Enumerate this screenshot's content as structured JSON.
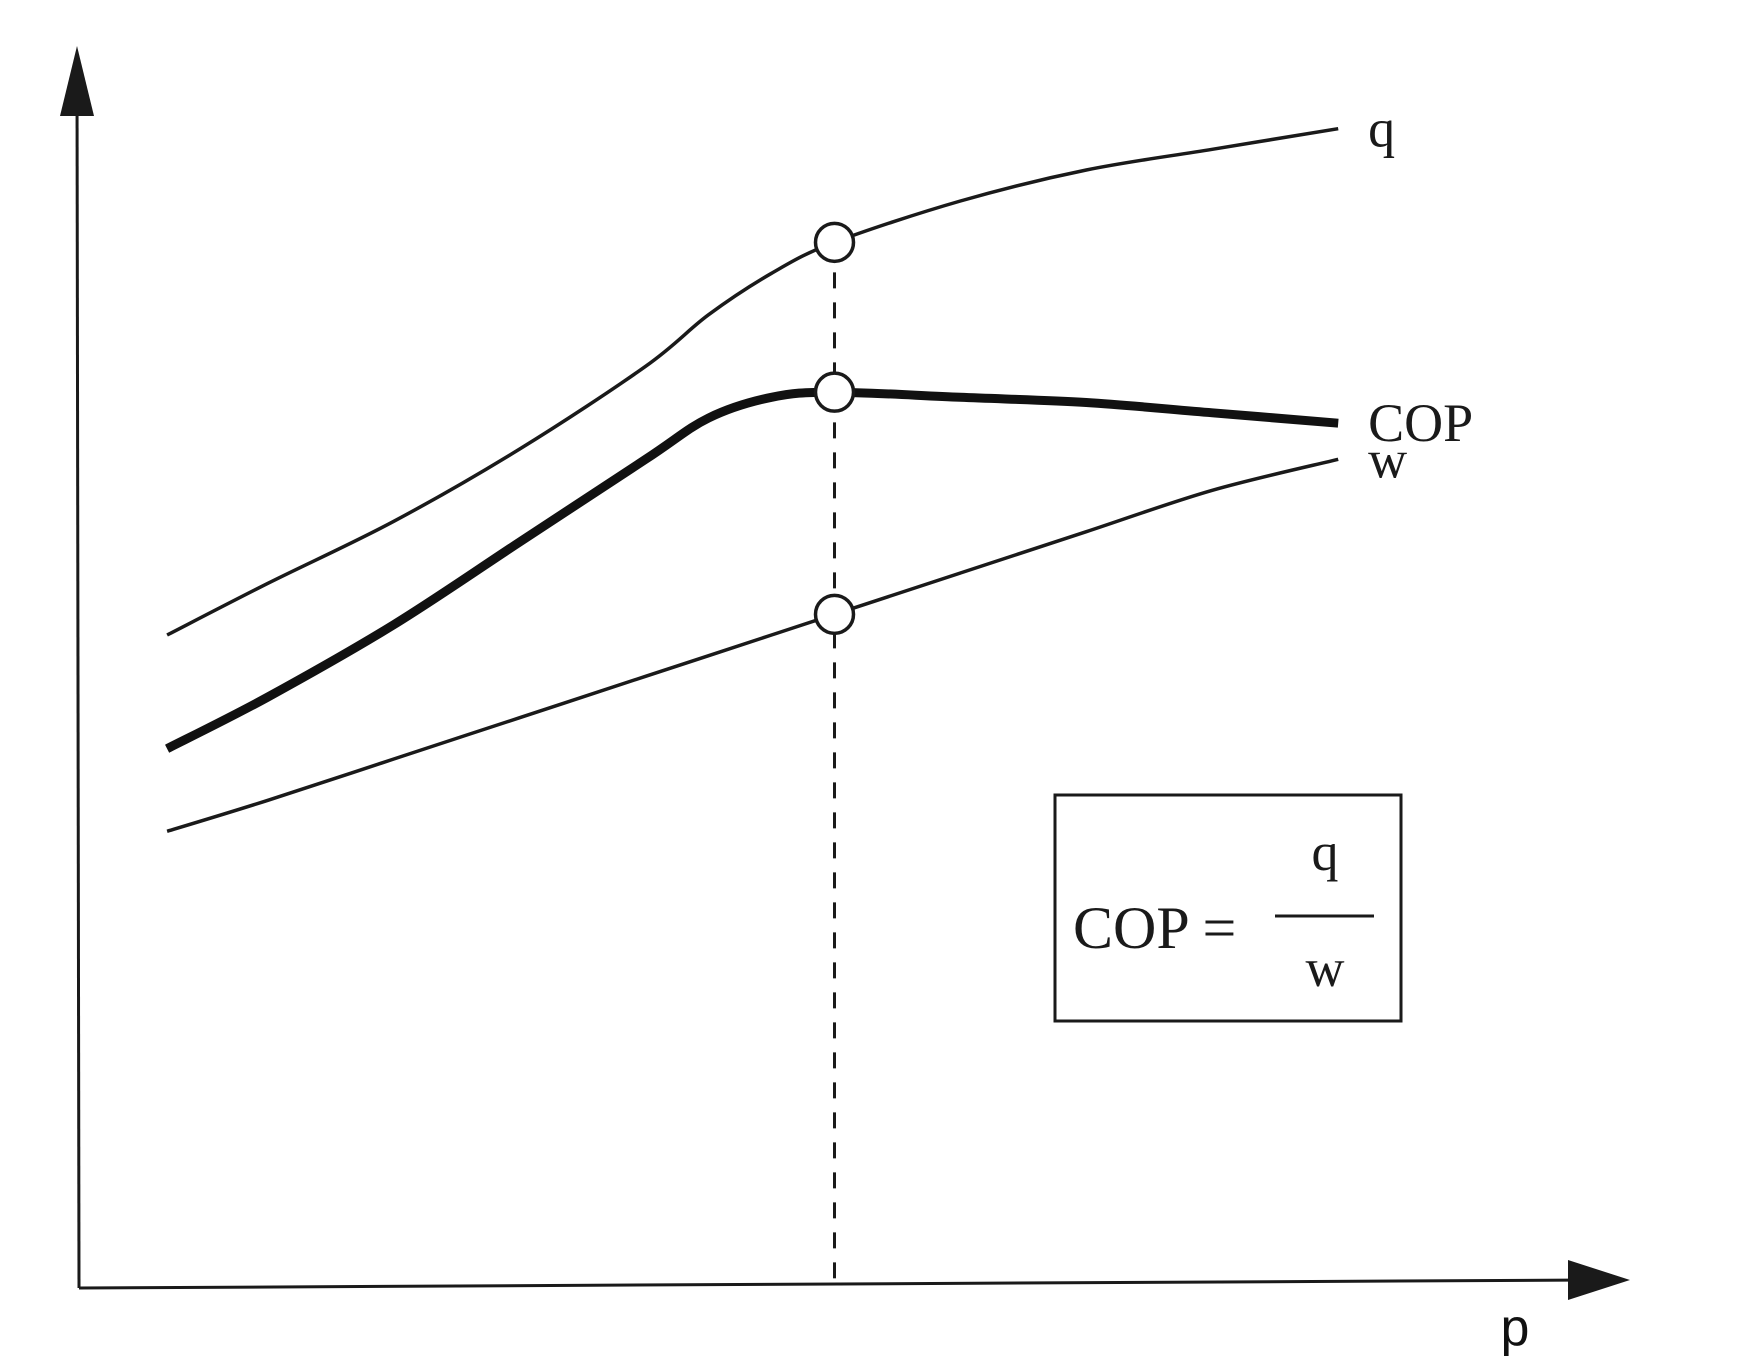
{
  "chart_data": {
    "type": "line",
    "xlabel": "p",
    "ylabel": "",
    "title": "",
    "x": [
      0.07,
      0.15,
      0.25,
      0.35,
      0.45,
      0.5,
      0.55,
      0.6,
      0.7,
      0.8,
      0.9,
      1.0
    ],
    "series": [
      {
        "name": "q",
        "values": [
          0.63,
          0.68,
          0.74,
          0.81,
          0.89,
          0.94,
          0.98,
          1.01,
          1.05,
          1.08,
          1.1,
          1.12
        ]
      },
      {
        "name": "COP",
        "values": [
          0.52,
          0.57,
          0.64,
          0.72,
          0.8,
          0.84,
          0.86,
          0.865,
          0.86,
          0.855,
          0.845,
          0.835
        ]
      },
      {
        "name": "w",
        "values": [
          0.44,
          0.47,
          0.51,
          0.55,
          0.59,
          0.61,
          0.63,
          0.65,
          0.69,
          0.73,
          0.77,
          0.8
        ]
      }
    ],
    "marker_x": 0.6,
    "formula": {
      "lhs": "COP =",
      "numerator": "q",
      "denominator": "w"
    },
    "xlim": [
      0,
      1.2
    ],
    "ylim": [
      0,
      1.2
    ],
    "grid": false,
    "legend": "none",
    "colors": {
      "line": "#1a1a1a",
      "cop_line": "#111111"
    }
  }
}
